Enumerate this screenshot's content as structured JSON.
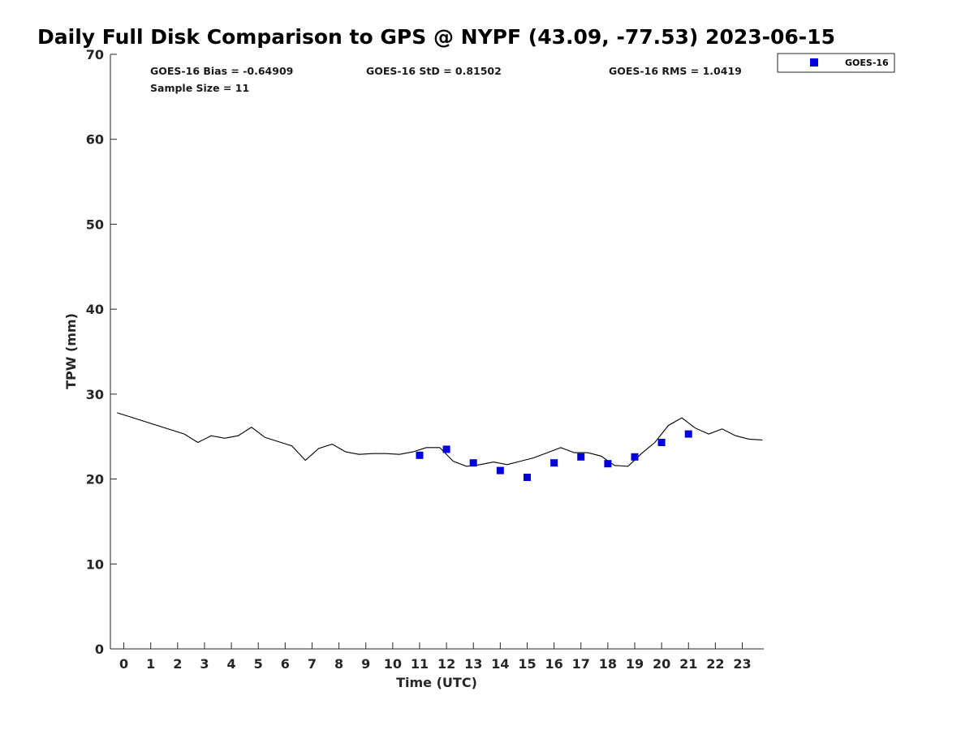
{
  "chart_data": {
    "type": "scatter",
    "title": "Daily Full Disk Comparison to GPS @ NYPF (43.09, -77.53) 2023-06-15",
    "xlabel": "Time (UTC)",
    "ylabel": "TPW (mm)",
    "xlim": [
      -0.5,
      23.8
    ],
    "ylim": [
      0,
      70
    ],
    "x_ticks": [
      "0",
      "1",
      "2",
      "3",
      "4",
      "5",
      "6",
      "7",
      "8",
      "9",
      "10",
      "11",
      "12",
      "13",
      "14",
      "15",
      "16",
      "17",
      "18",
      "19",
      "20",
      "21",
      "22",
      "23"
    ],
    "y_ticks": [
      "0",
      "10",
      "20",
      "30",
      "40",
      "50",
      "60",
      "70"
    ],
    "grid": false,
    "stats": {
      "bias": "GOES-16 Bias = -0.64909",
      "std": "GOES-16 StD = 0.81502",
      "rms": "GOES-16 RMS = 1.0419",
      "sample_size": "Sample Size = 11"
    },
    "legend": {
      "placement": "outside-top-right",
      "entries": [
        "GOES-16"
      ]
    },
    "series": [
      {
        "name": "GOES-16",
        "kind": "scatter",
        "marker": "square",
        "color": "#0000dd",
        "x": [
          11,
          12,
          13,
          14,
          15,
          16,
          17,
          18,
          19,
          20,
          21
        ],
        "y": [
          22.8,
          23.5,
          21.9,
          21.0,
          20.2,
          21.9,
          22.6,
          21.8,
          22.6,
          24.3,
          25.3
        ]
      },
      {
        "kind": "line",
        "color": "#000000",
        "x": [
          -0.25,
          2.25,
          2.75,
          3.25,
          3.75,
          4.25,
          4.75,
          5.25,
          5.75,
          6.25,
          6.75,
          7.25,
          7.75,
          8.25,
          8.75,
          9.25,
          9.75,
          10.25,
          10.75,
          11.25,
          11.75,
          12.25,
          12.75,
          13.25,
          13.75,
          14.25,
          14.75,
          15.25,
          15.75,
          16.25,
          16.75,
          17.25,
          17.75,
          18.25,
          18.75,
          19.25,
          19.75,
          20.25,
          20.75,
          21.25,
          21.75,
          22.25,
          22.75,
          23.25,
          23.75
        ],
        "y": [
          27.8,
          25.3,
          24.3,
          25.1,
          24.8,
          25.1,
          26.1,
          24.9,
          24.4,
          23.9,
          22.2,
          23.6,
          24.1,
          23.2,
          22.9,
          23.0,
          23.0,
          22.9,
          23.2,
          23.7,
          23.7,
          22.1,
          21.5,
          21.7,
          22.0,
          21.7,
          22.1,
          22.5,
          23.1,
          23.7,
          23.1,
          23.1,
          22.7,
          21.6,
          21.5,
          23.0,
          24.3,
          26.3,
          27.2,
          26.0,
          25.3,
          25.9,
          25.1,
          24.7,
          24.6
        ]
      }
    ]
  }
}
